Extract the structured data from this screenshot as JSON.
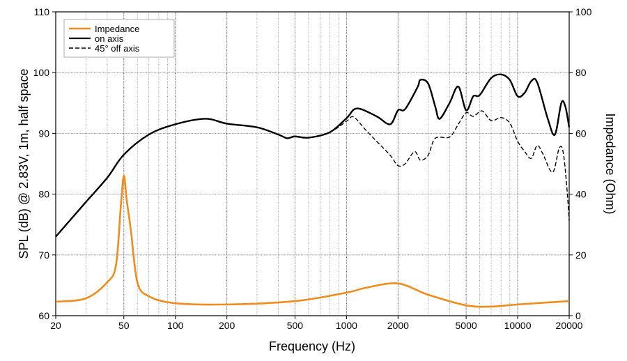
{
  "chart_data": {
    "type": "line",
    "xlabel": "Frequency (Hz)",
    "ylabel": "SPL (dB) @ 2.83V, 1m, half space",
    "y2label": "Impedance (Ohm)",
    "xscale": "log",
    "xlim": [
      20,
      20000
    ],
    "ylim": [
      60,
      110
    ],
    "y2lim": [
      0,
      100
    ],
    "grid": true,
    "legend_position": "top-left",
    "x_ticks": [
      20,
      50,
      100,
      200,
      500,
      1000,
      2000,
      5000,
      10000,
      20000
    ],
    "y_ticks": [
      60,
      70,
      80,
      90,
      100,
      110
    ],
    "y2_ticks": [
      0,
      20,
      40,
      60,
      80,
      100
    ],
    "series": [
      {
        "name": "Impedance",
        "axis": "right",
        "color": "#f08c1e",
        "style": "solid",
        "x": [
          20,
          30,
          40,
          45,
          48,
          50,
          52,
          55,
          60,
          70,
          100,
          200,
          500,
          1000,
          1300,
          2000,
          3000,
          5000,
          7000,
          10000,
          20000
        ],
        "y": [
          4.6,
          5.7,
          11,
          16.7,
          36,
          46,
          38,
          28,
          11,
          6.4,
          4.1,
          3.7,
          4.8,
          7.6,
          9.2,
          10.6,
          6.9,
          3.4,
          3.0,
          3.7,
          4.8
        ]
      },
      {
        "name": "on axis",
        "axis": "left",
        "color": "#000000",
        "style": "solid",
        "x": [
          20,
          30,
          40,
          50,
          70,
          100,
          150,
          200,
          300,
          400,
          450,
          500,
          600,
          800,
          1000,
          1150,
          1500,
          1800,
          2000,
          2200,
          2600,
          2700,
          3000,
          3300,
          3500,
          4000,
          4500,
          5000,
          5500,
          6000,
          7000,
          8000,
          9000,
          10000,
          11000,
          12000,
          13000,
          15000,
          16500,
          18000,
          19000,
          20000
        ],
        "y": [
          73,
          78.7,
          82.7,
          86.5,
          89.8,
          91.5,
          92.4,
          91.6,
          91,
          89.8,
          89.2,
          89.5,
          89.3,
          90.2,
          92.5,
          94.1,
          92.8,
          91.5,
          93.8,
          94,
          97.6,
          98.8,
          98.2,
          94.4,
          92.4,
          95,
          97.7,
          93.8,
          96.1,
          96.3,
          99.1,
          99.7,
          98.8,
          96.1,
          96.7,
          98.6,
          98.4,
          92.4,
          89.8,
          95,
          94.4,
          91
        ]
      },
      {
        "name": "45° off axis",
        "axis": "left",
        "color": "#000000",
        "style": "dashed",
        "x": [
          20,
          30,
          40,
          50,
          70,
          100,
          150,
          200,
          300,
          400,
          450,
          500,
          600,
          800,
          1000,
          1100,
          1300,
          1500,
          1800,
          2000,
          2200,
          2500,
          2700,
          3000,
          3300,
          4000,
          4500,
          5000,
          5500,
          6200,
          7000,
          8000,
          9000,
          10000,
          11000,
          12000,
          13000,
          14000,
          16000,
          17500,
          18500,
          19500,
          20000
        ],
        "y": [
          73,
          78.7,
          82.7,
          86.5,
          89.8,
          91.5,
          92.4,
          91.6,
          91,
          89.8,
          89.2,
          89.5,
          89.3,
          90.2,
          92,
          92.7,
          90.5,
          88.7,
          86.4,
          84.7,
          85,
          87,
          85.6,
          86.4,
          89.2,
          89.4,
          91.5,
          93.4,
          92.8,
          93.7,
          92.1,
          92.6,
          91.7,
          88.7,
          87,
          85.9,
          88,
          86.7,
          83.6,
          87.6,
          86.7,
          80.2,
          75.6
        ]
      }
    ]
  }
}
